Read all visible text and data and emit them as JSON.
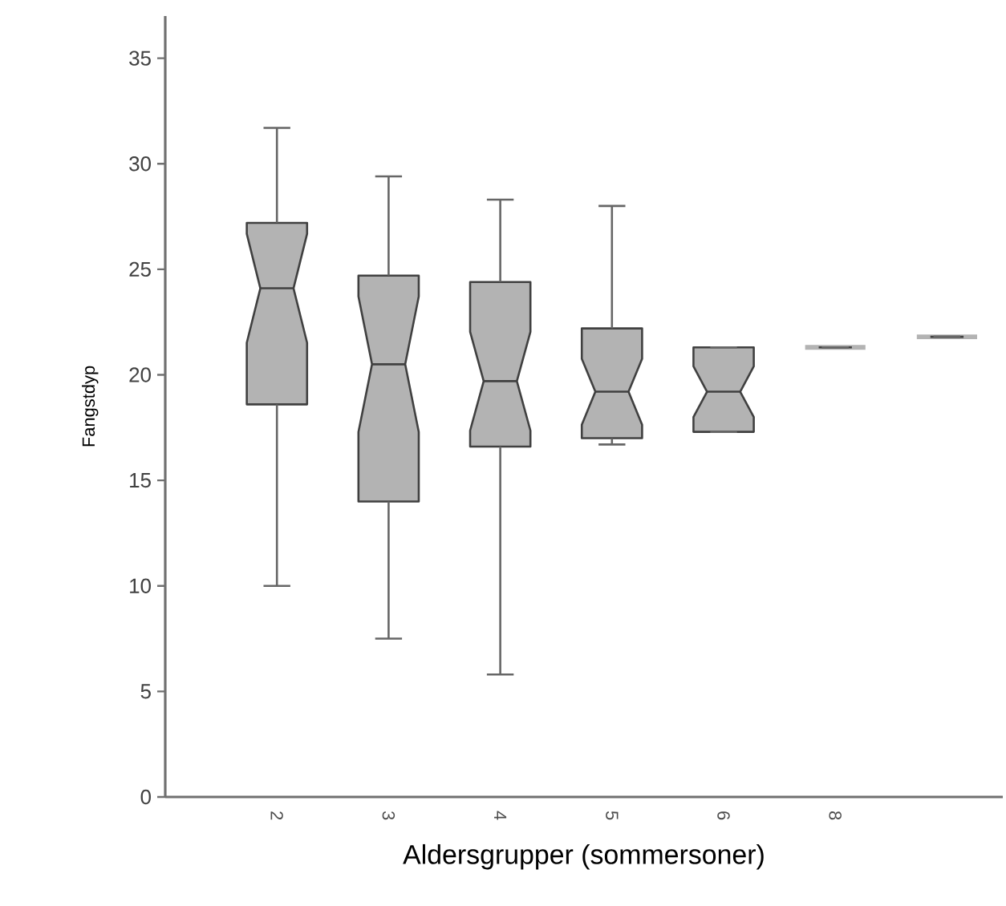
{
  "chart_data": {
    "type": "box",
    "xlabel": "Aldersgrupper (sommersoner)",
    "ylabel": "Fangstdyp",
    "categories": [
      "2",
      "3",
      "4",
      "5",
      "6",
      "8",
      null
    ],
    "color": "#b3b3b3",
    "ylim": [
      0,
      37
    ],
    "yticks": [
      0,
      5,
      10,
      15,
      20,
      25,
      30,
      35
    ],
    "grid": false,
    "boxes": [
      {
        "low": 10.0,
        "q1": 18.6,
        "median": 24.1,
        "q3": 27.2,
        "high": 31.7
      },
      {
        "low": 7.5,
        "q1": 14.0,
        "median": 20.5,
        "q3": 24.7,
        "high": 29.4
      },
      {
        "low": 5.8,
        "q1": 16.6,
        "median": 19.7,
        "q3": 24.4,
        "high": 28.3
      },
      {
        "low": 16.7,
        "q1": 17.0,
        "median": 19.2,
        "q3": 22.2,
        "high": 28.0
      },
      {
        "low": 17.3,
        "q1": 17.3,
        "median": 19.2,
        "q3": 21.3,
        "high": 21.3
      },
      {
        "low": 21.3,
        "q1": 21.3,
        "median": 21.3,
        "q3": 21.3,
        "high": 21.3
      },
      {
        "low": 21.8,
        "q1": 21.8,
        "median": 21.8,
        "q3": 21.8,
        "high": 21.8
      }
    ]
  }
}
